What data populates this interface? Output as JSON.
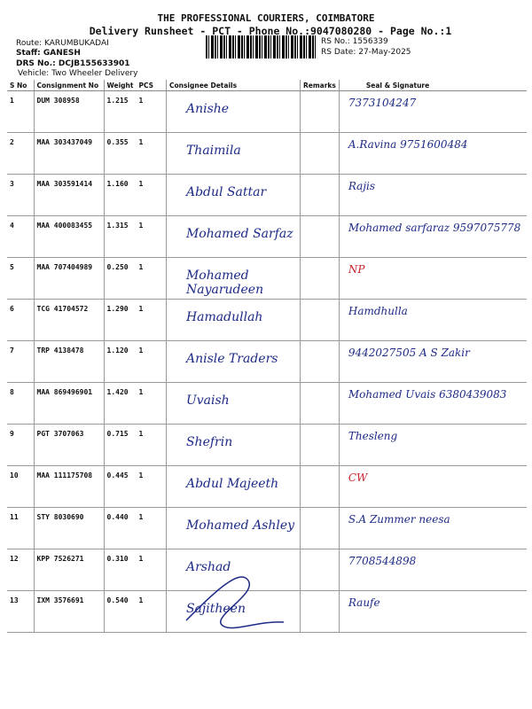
{
  "header": {
    "title": "THE PROFESSIONAL COURIERS, COIMBATORE",
    "subtitle": "Delivery Runsheet - PCT - Phone No.:9047080280 - Page No.:1",
    "route": "Route: KARUMBUKADAI",
    "staff": "Staff: GANESH",
    "drs": "DRS No.: DCJB155633901",
    "vehicle": "Vehicle: Two Wheeler Delivery",
    "rs_no": "RS No.: 1556339",
    "rs_date": "RS Date: 27-May-2025"
  },
  "columns": [
    "S No",
    "Consignment No",
    "Weight",
    "PCS",
    "Consignee Details",
    "Remarks",
    "Seal & Signature"
  ],
  "rows": [
    {
      "sno": "1",
      "cno": "DUM 308958",
      "weight": "1.215",
      "pcs": "1",
      "consignee": "Anishe",
      "sig": "7373104247"
    },
    {
      "sno": "2",
      "cno": "MAA 303437049",
      "weight": "0.355",
      "pcs": "1",
      "consignee": "Thaimila",
      "sig": "A.Ravina 9751600484"
    },
    {
      "sno": "3",
      "cno": "MAA 303591414",
      "weight": "1.160",
      "pcs": "1",
      "consignee": "Abdul Sattar",
      "sig": "Rajis"
    },
    {
      "sno": "4",
      "cno": "MAA 400083455",
      "weight": "1.315",
      "pcs": "1",
      "consignee": "Mohamed Sarfaz",
      "sig": "Mohamed sarfaraz 9597075778"
    },
    {
      "sno": "5",
      "cno": "MAA 707404989",
      "weight": "0.250",
      "pcs": "1",
      "consignee": "Mohamed Nayarudeen",
      "sig": "NP"
    },
    {
      "sno": "6",
      "cno": "TCG 41704572",
      "weight": "1.290",
      "pcs": "1",
      "consignee": "Hamadullah",
      "sig": "Hamdhulla"
    },
    {
      "sno": "7",
      "cno": "TRP 4138478",
      "weight": "1.120",
      "pcs": "1",
      "consignee": "Anisle Traders",
      "sig": "9442027505 A S Zakir"
    },
    {
      "sno": "8",
      "cno": "MAA 869496901",
      "weight": "1.420",
      "pcs": "1",
      "consignee": "Uvaish",
      "sig": "Mohamed Uvais 6380439083"
    },
    {
      "sno": "9",
      "cno": "PGT 3707063",
      "weight": "0.715",
      "pcs": "1",
      "consignee": "Shefrin",
      "sig": "Thesleng"
    },
    {
      "sno": "10",
      "cno": "MAA 111175708",
      "weight": "0.445",
      "pcs": "1",
      "consignee": "Abdul Majeeth",
      "sig": "CW"
    },
    {
      "sno": "11",
      "cno": "STY 8030690",
      "weight": "0.440",
      "pcs": "1",
      "consignee": "Mohamed Ashley",
      "sig": "S.A Zummer neesa"
    },
    {
      "sno": "12",
      "cno": "KPP 7526271",
      "weight": "0.310",
      "pcs": "1",
      "consignee": "Arshad",
      "sig": "7708544898"
    },
    {
      "sno": "13",
      "cno": "IXM 3576691",
      "weight": "0.540",
      "pcs": "1",
      "consignee": "Sajitheen",
      "sig": "Raufe"
    }
  ]
}
